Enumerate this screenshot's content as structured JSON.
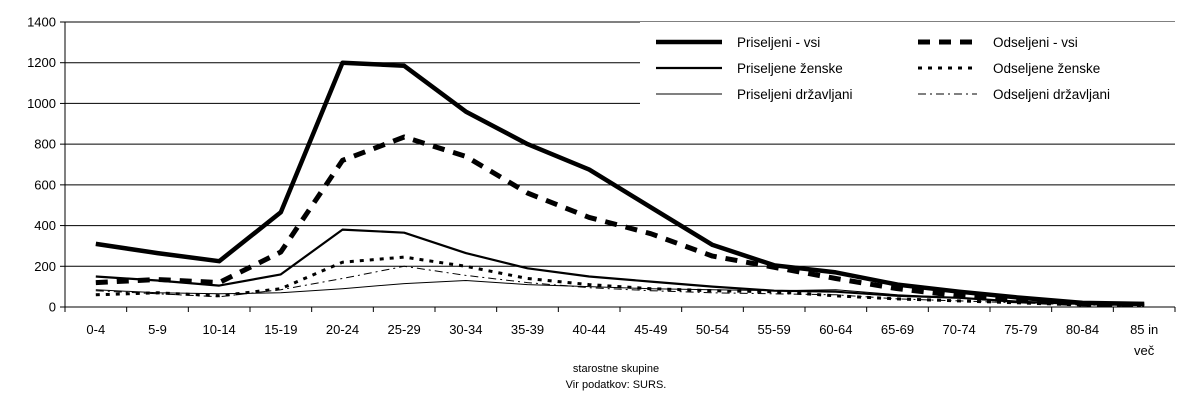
{
  "chart_data": {
    "type": "line",
    "categories": [
      "0-4",
      "5-9",
      "10-14",
      "15-19",
      "20-24",
      "25-29",
      "30-34",
      "35-39",
      "40-44",
      "45-49",
      "50-54",
      "55-59",
      "60-64",
      "65-69",
      "70-74",
      "75-79",
      "80-84",
      "85 in več"
    ],
    "category_lines": [
      [
        "0-4"
      ],
      [
        "5-9"
      ],
      [
        "10-14"
      ],
      [
        "15-19"
      ],
      [
        "20-24"
      ],
      [
        "25-29"
      ],
      [
        "30-34"
      ],
      [
        "35-39"
      ],
      [
        "40-44"
      ],
      [
        "45-49"
      ],
      [
        "50-54"
      ],
      [
        "55-59"
      ],
      [
        "60-64"
      ],
      [
        "65-69"
      ],
      [
        "70-74"
      ],
      [
        "75-79"
      ],
      [
        "80-84"
      ],
      [
        "85 in",
        "več"
      ]
    ],
    "ylim": [
      0,
      1400
    ],
    "yticks": [
      "0",
      "200",
      "400",
      "600",
      "800",
      "1000",
      "1200",
      "1400"
    ],
    "xlabel": "starostne skupine",
    "source": "Vir podatkov: SURS.",
    "legend_position": "top-right",
    "series": [
      {
        "name": "Priseljeni - vsi",
        "style": "thick-solid",
        "values": [
          310,
          265,
          225,
          465,
          1200,
          1185,
          960,
          800,
          675,
          490,
          305,
          205,
          170,
          110,
          75,
          45,
          20,
          15
        ]
      },
      {
        "name": "Odseljeni - vsi",
        "style": "thick-dashed",
        "values": [
          120,
          135,
          120,
          270,
          720,
          835,
          740,
          560,
          440,
          360,
          250,
          195,
          140,
          90,
          55,
          30,
          15,
          10
        ]
      },
      {
        "name": "Priseljene ženske",
        "style": "medium-solid",
        "values": [
          150,
          130,
          105,
          160,
          380,
          365,
          265,
          190,
          150,
          125,
          100,
          80,
          75,
          55,
          45,
          25,
          15,
          10
        ]
      },
      {
        "name": "Odseljene ženske",
        "style": "medium-dotted",
        "values": [
          60,
          70,
          55,
          90,
          220,
          245,
          200,
          140,
          110,
          90,
          80,
          75,
          55,
          40,
          30,
          20,
          10,
          8
        ]
      },
      {
        "name": "Priseljeni državljani",
        "style": "thin-solid",
        "values": [
          85,
          70,
          65,
          70,
          90,
          115,
          130,
          110,
          100,
          90,
          85,
          80,
          85,
          60,
          45,
          25,
          15,
          10
        ]
      },
      {
        "name": "Odseljeni državljani",
        "style": "thin-dashdot",
        "values": [
          80,
          65,
          50,
          85,
          140,
          200,
          155,
          120,
          95,
          80,
          70,
          65,
          60,
          40,
          30,
          20,
          10,
          8
        ]
      }
    ]
  }
}
